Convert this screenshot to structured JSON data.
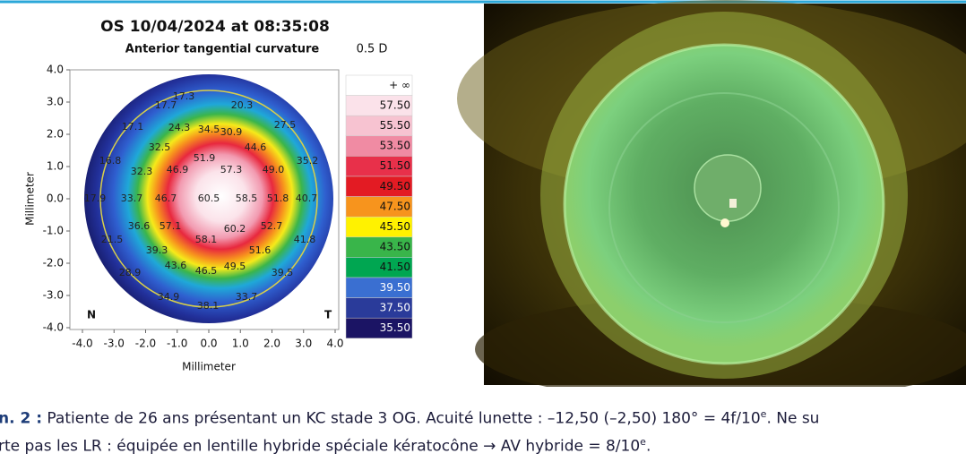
{
  "figure": {
    "map": {
      "title": "OS  10/04/2024 at 08:35:08",
      "subtitle": "Anterior tangential curvature",
      "step": "0.5 D",
      "x_label": "Millimeter",
      "y_label": "Millimeter",
      "x_ticks": [
        "-4.0",
        "-3.0",
        "-2.0",
        "-1.0",
        "0.0",
        "1.0",
        "2.0",
        "3.0",
        "4.0"
      ],
      "y_ticks": [
        "4.0",
        "3.0",
        "2.0",
        "1.0",
        "0.0",
        "-1.0",
        "-2.0",
        "-3.0",
        "-4.0"
      ],
      "nasal": "N",
      "temporal": "T",
      "values": [
        "17.3",
        "17.7",
        "20.3",
        "17.1",
        "24.3",
        "34.5",
        "30.9",
        "27.5",
        "32.5",
        "44.6",
        "16.8",
        "32.3",
        "46.9",
        "51.9",
        "57.3",
        "49.0",
        "35.2",
        "17.9",
        "33.7",
        "46.7",
        "60.5",
        "58.5",
        "51.8",
        "40.7",
        "21.5",
        "36.6",
        "57.1",
        "60.2",
        "52.7",
        "58.1",
        "39.3",
        "51.6",
        "41.8",
        "28.9",
        "43.6",
        "46.5",
        "49.5",
        "39.5",
        "34.9",
        "33.7",
        "38.1"
      ],
      "scale": [
        "+ ∞",
        "57.50",
        "55.50",
        "53.50",
        "51.50",
        "49.50",
        "47.50",
        "45.50",
        "43.50",
        "41.50",
        "39.50",
        "37.50",
        "35.50"
      ]
    }
  },
  "caption": {
    "lines": [
      {
        "label": "n. 2 :",
        "text": " Patiente de 26 ans présentant un KC stade 3 OG. Acuité lunette : –12,50 (–2,50) 180° = 4f/10",
        "sup": "e",
        "rest": ". Ne su"
      },
      {
        "text": "rte pas les LR : équipée en lentille hybride spéciale kératocône → AV hybride = 8/10",
        "sup": "e",
        "rest": "."
      }
    ]
  }
}
